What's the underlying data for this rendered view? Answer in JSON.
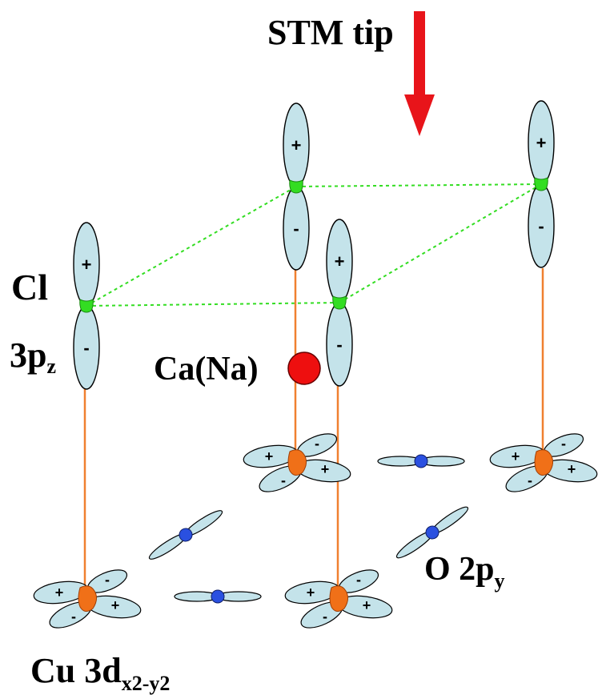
{
  "labels": {
    "stm_tip": "STM tip",
    "cl": "Cl",
    "cl_orbital_main": "3p",
    "cl_orbital_sub": "z",
    "ca_na": "Ca(Na)",
    "o_orbital_main": "O 2p",
    "o_orbital_sub": "y",
    "cu_orbital_main": "Cu 3d",
    "cu_orbital_sub": "x2-y2"
  },
  "signs": {
    "plus": "+",
    "minus": "-"
  },
  "colors": {
    "stm_arrow": "#e8141a",
    "ca_atom": "#ee0f0f",
    "cl_atom": "#33dd22",
    "cu_atom": "#f07018",
    "o_atom": "#2a50e0",
    "bond_line": "#f08030",
    "cl_link": "#33dd22",
    "orbital_fill": "#c4e3ea"
  },
  "icons": [
    "down-arrow-icon"
  ]
}
